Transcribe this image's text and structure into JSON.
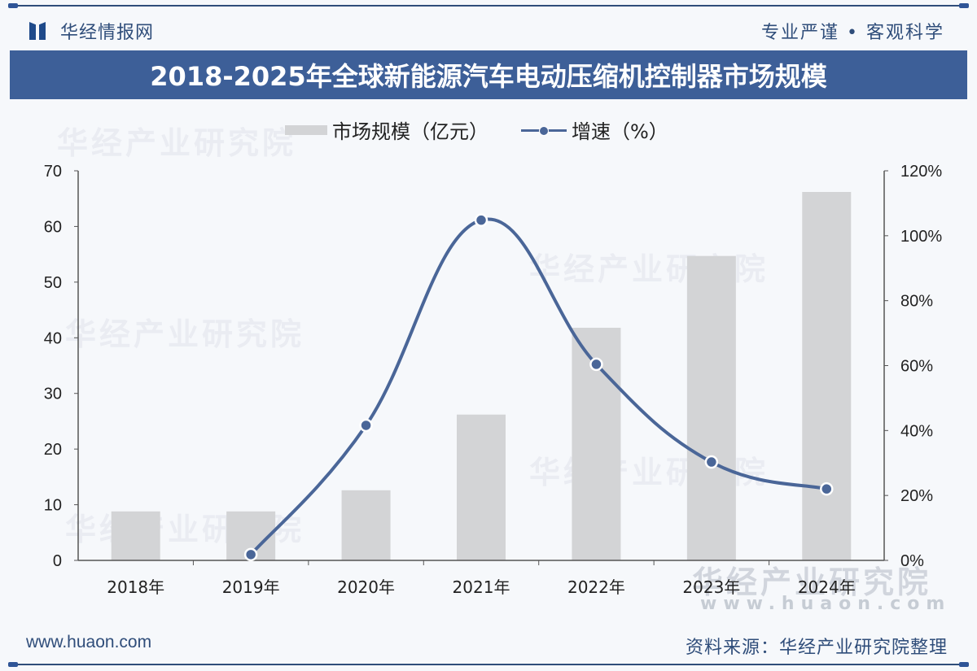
{
  "header": {
    "logo_text": "华经情报网",
    "slogan": "专业严谨 • 客观科学"
  },
  "title": "2018-2025年全球新能源汽车电动压缩机控制器市场规模",
  "legend": {
    "bar_label": "市场规模（亿元）",
    "line_label": "增速（%）"
  },
  "footer": {
    "url": "www.huaon.com",
    "source": "资料来源：华经产业研究院整理"
  },
  "watermark": {
    "text": "华经产业研究院",
    "url": "www.huaon.com"
  },
  "colors": {
    "title_bg": "#3d5f98",
    "bar": "#d3d4d6",
    "line": "#4a6698",
    "axis": "#555555"
  },
  "chart_data": {
    "type": "bar",
    "title": "2018-2025年全球新能源汽车电动压缩机控制器市场规模",
    "categories": [
      "2018年",
      "2019年",
      "2020年",
      "2021年",
      "2022年",
      "2023年",
      "2024年"
    ],
    "series": [
      {
        "name": "市场规模（亿元）",
        "type": "bar",
        "axis": "left",
        "values": [
          8.8,
          8.8,
          12.6,
          26.2,
          41.8,
          54.7,
          66.2
        ]
      },
      {
        "name": "增速（%）",
        "type": "line",
        "axis": "right",
        "values": [
          null,
          1.8,
          41.6,
          104.8,
          60.4,
          30.3,
          22.0
        ]
      }
    ],
    "xlabel": "",
    "ylabel_left": "",
    "ylabel_right": "",
    "ylim_left": [
      0,
      70
    ],
    "ylim_right": [
      0,
      120
    ],
    "yticks_left": [
      "0",
      "10",
      "20",
      "30",
      "40",
      "50",
      "60",
      "70"
    ],
    "yticks_right": [
      "0%",
      "20%",
      "40%",
      "60%",
      "80%",
      "100%",
      "120%"
    ],
    "grid": false,
    "legend_position": "top"
  }
}
